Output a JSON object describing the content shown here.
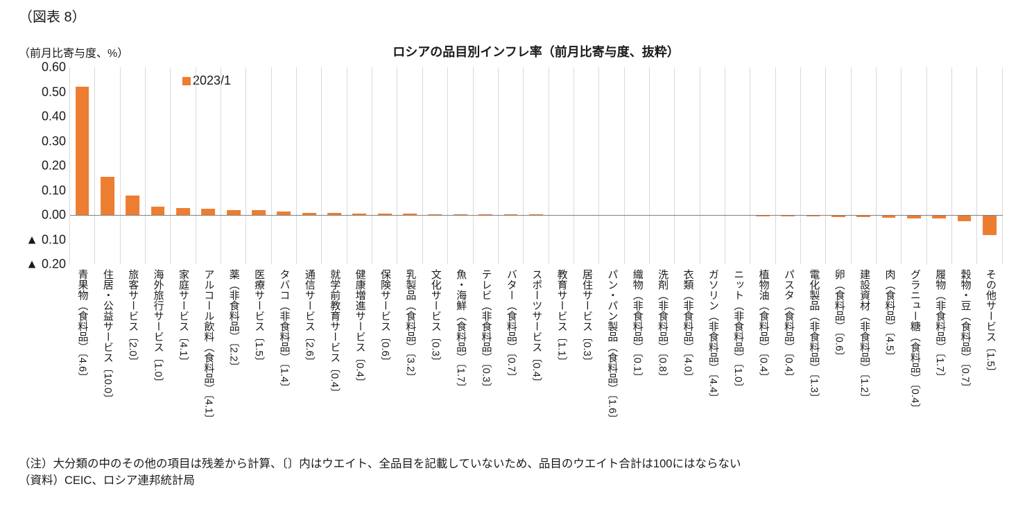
{
  "header": {
    "figure_label": "（図表 8）"
  },
  "chart_data": {
    "type": "bar",
    "title": "ロシアの品目別インフレ率（前月比寄与度、抜粋）",
    "ylabel": "（前月比寄与度、%）",
    "xlabel": "",
    "series_name": "2023/1",
    "bar_color": "#ED7D31",
    "gridline_color": "#d9d9d9",
    "zero_line_color": "#7f7f7f",
    "grid": "vertical",
    "legend_position": "top-left-inside",
    "ylim": [
      -0.2,
      0.6
    ],
    "ytick_values": [
      0.6,
      0.5,
      0.4,
      0.3,
      0.2,
      0.1,
      0.0,
      -0.1,
      -0.2
    ],
    "ytick_labels": [
      "0.60",
      "0.50",
      "0.40",
      "0.30",
      "0.20",
      "0.10",
      "0.00",
      "▲ 0.10",
      "▲ 0.20"
    ],
    "categories": [
      "青果物（食料品）〔4.6〕",
      "住居・公益サービス〔10.0〕",
      "旅客サービス〔2.0〕",
      "海外旅行サービス〔1.0〕",
      "家庭サービス〔4.1〕",
      "アルコール飲料（食料品）〔4.1〕",
      "薬（非食料品）〔2.2〕",
      "医療サービス〔1.5〕",
      "タバコ（非食料品）〔1.4〕",
      "通信サービス〔2.6〕",
      "就学前教育サービス〔0.4〕",
      "健康増進サービス〔0.4〕",
      "保険サービス〔0.6〕",
      "乳製品（食料品）〔3.2〕",
      "文化サービス〔0.3〕",
      "魚・海鮮（食料品）〔1.7〕",
      "テレビ（非食料品）〔0.3〕",
      "バター（食料品）〔0.7〕",
      "スポーツサービス〔0.4〕",
      "教育サービス〔1.1〕",
      "居住サービス〔0.3〕",
      "パン・パン製品（食料品）〔1.6〕",
      "織物（非食料品）〔0.1〕",
      "洗剤（非食料品）〔0.8〕",
      "衣類（非食料品）〔4.0〕",
      "ガソリン（非食料品）〔4.4〕",
      "ニット（非食料品）〔1.0〕",
      "植物油（食料品）〔0.4〕",
      "パスタ（食料品）〔0.4〕",
      "電化製品（非食料品）〔1.3〕",
      "卵（食料品）〔0.6〕",
      "建設資材（非食料品）〔1.2〕",
      "肉（食料品）〔4.5〕",
      "グラニュー糖（食料品）〔0.4〕",
      "履物（非食料品）〔1.7〕",
      "穀物・豆（食料品）〔0.7〕",
      "その他サービス〔1.5〕"
    ],
    "values": [
      0.52,
      0.155,
      0.078,
      0.033,
      0.028,
      0.025,
      0.021,
      0.019,
      0.013,
      0.009,
      0.008,
      0.007,
      0.006,
      0.006,
      0.004,
      0.004,
      0.003,
      0.002,
      0.002,
      0.001,
      0.001,
      0.001,
      0.0005,
      0.0005,
      0.0005,
      0.0005,
      0.0003,
      -0.002,
      -0.002,
      -0.003,
      -0.005,
      -0.007,
      -0.009,
      -0.01,
      -0.012,
      -0.022,
      -0.08
    ]
  },
  "footer": {
    "note": "（注）大分類の中のその他の項目は残差から計算、〔〕内はウエイト、全品目を記載していないため、品目のウエイト合計は100にはならない",
    "source": "（資料）CEIC、ロシア連邦統計局"
  }
}
